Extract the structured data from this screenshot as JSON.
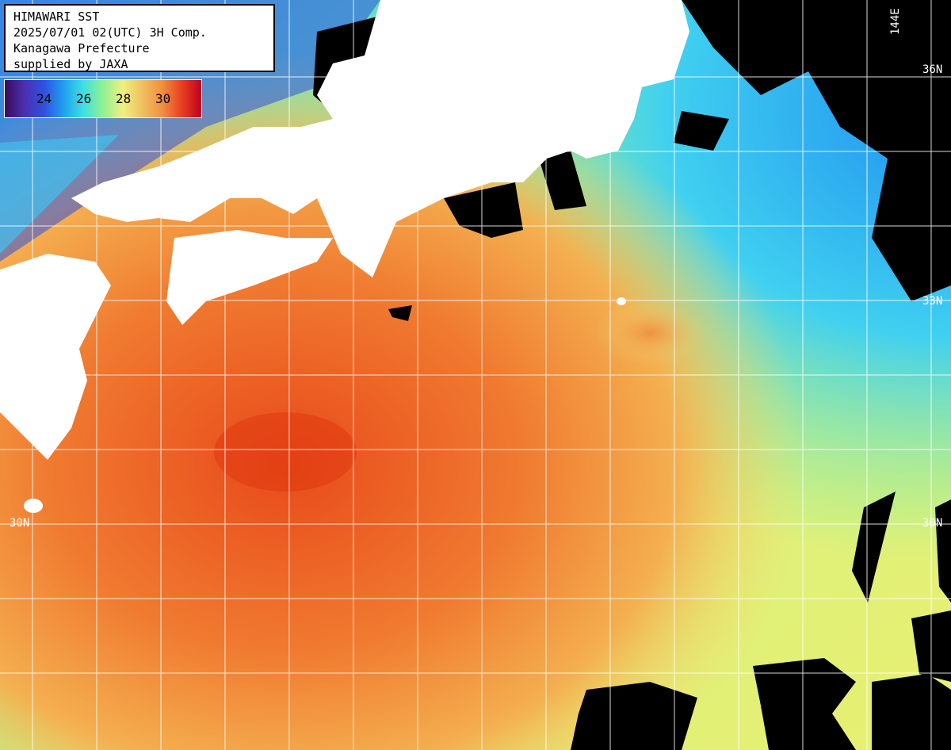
{
  "header": {
    "line1": "HIMAWARI SST",
    "line2": "2025/07/01 02(UTC) 3H Comp.",
    "line3": "Kanagawa Prefecture",
    "line4": "supplied by JAXA"
  },
  "legend": {
    "ticks": [
      "24",
      "26",
      "28",
      "30"
    ],
    "unit_colors": {
      "cold": "#3a0a5a",
      "cool": "#20a0f0",
      "mid": "#90f090",
      "warm": "#f0c060",
      "hot": "#c00020"
    }
  },
  "grid": {
    "lat_labels": [
      "36N",
      "33N",
      "30N",
      "30N"
    ],
    "lon_labels": [
      "144E"
    ]
  },
  "colors": {
    "land": "#ffffff",
    "no_data": "#000000",
    "grid": "#ffffff"
  }
}
